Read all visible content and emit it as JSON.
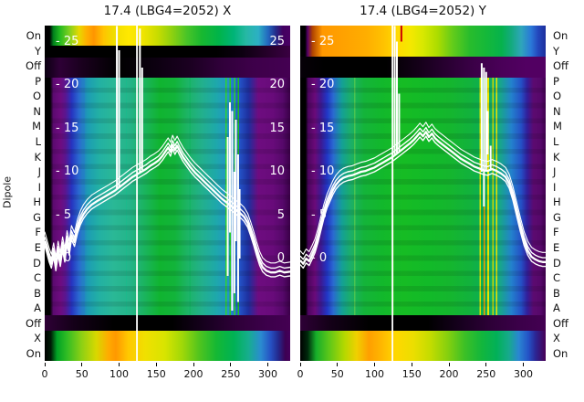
{
  "dipole_axis": {
    "label": "Dipole",
    "categories": [
      "On",
      "Y",
      "Off",
      "P",
      "O",
      "N",
      "M",
      "L",
      "K",
      "J",
      "I",
      "H",
      "G",
      "F",
      "E",
      "D",
      "C",
      "B",
      "A",
      "Off",
      "X",
      "On"
    ]
  },
  "panels": [
    {
      "title": "17.4 (LBG4=2052) X",
      "x_tick_labels": [
        "0",
        "50",
        "100",
        "150",
        "200",
        "250",
        "300"
      ],
      "overlay_left_tick_labels": [
        "- 25",
        "- 20",
        "- 15",
        "- 10",
        "- 5",
        "- 0"
      ],
      "overlay_right_tick_labels": [
        "25",
        "20",
        "15",
        "10",
        "5",
        "0"
      ]
    },
    {
      "title": "17.4 (LBG4=2052) Y",
      "x_tick_labels": [
        "0",
        "50",
        "100",
        "150",
        "200",
        "250",
        "300"
      ],
      "overlay_left_tick_labels": [
        "- 25",
        "- 20",
        "- 15",
        "- 10",
        "- 5",
        "- 0"
      ],
      "overlay_right_tick_labels": []
    }
  ],
  "chart_data": [
    {
      "type": "heatmap",
      "title": "17.4 (LBG4=2052) X",
      "ylabel": "Dipole",
      "row_categories": [
        "On",
        "Y",
        "Off",
        "P",
        "O",
        "N",
        "M",
        "L",
        "K",
        "J",
        "I",
        "H",
        "G",
        "F",
        "E",
        "D",
        "C",
        "B",
        "A",
        "Off",
        "X",
        "On"
      ],
      "x_range": [
        0,
        330
      ],
      "x_ticks": [
        0,
        50,
        100,
        150,
        200,
        250,
        300
      ],
      "overlay_y_ticks": [
        25,
        20,
        15,
        10,
        5,
        0
      ],
      "palette": [
        "#000000",
        "#5c0a70",
        "#2136c6",
        "#14a096",
        "#12b82c",
        "#e8e000",
        "#ff9800"
      ],
      "trace_color": "#ffffff",
      "full_vline_x": 124,
      "trace_points": [
        [
          0,
          2.0
        ],
        [
          3,
          1.1
        ],
        [
          6,
          0.1
        ],
        [
          9,
          -0.6
        ],
        [
          12,
          0.7
        ],
        [
          15,
          -0.9
        ],
        [
          18,
          0.9
        ],
        [
          21,
          -0.4
        ],
        [
          24,
          1.4
        ],
        [
          27,
          0.1
        ],
        [
          30,
          2.1
        ],
        [
          33,
          0.9
        ],
        [
          36,
          2.7
        ],
        [
          40,
          1.9
        ],
        [
          44,
          3.4
        ],
        [
          48,
          4.4
        ],
        [
          52,
          5.1
        ],
        [
          57,
          5.7
        ],
        [
          63,
          6.2
        ],
        [
          70,
          6.6
        ],
        [
          78,
          7.0
        ],
        [
          86,
          7.4
        ],
        [
          94,
          7.8
        ],
        [
          100,
          8.2
        ],
        [
          106,
          8.6
        ],
        [
          112,
          9.0
        ],
        [
          118,
          9.4
        ],
        [
          124,
          9.7
        ],
        [
          130,
          10.0
        ],
        [
          136,
          10.3
        ],
        [
          142,
          10.7
        ],
        [
          148,
          11.0
        ],
        [
          153,
          11.3
        ],
        [
          158,
          11.8
        ],
        [
          162,
          12.3
        ],
        [
          166,
          12.8
        ],
        [
          169,
          12.3
        ],
        [
          172,
          13.1
        ],
        [
          175,
          12.5
        ],
        [
          178,
          13.0
        ],
        [
          182,
          12.3
        ],
        [
          186,
          11.7
        ],
        [
          191,
          11.1
        ],
        [
          196,
          10.5
        ],
        [
          202,
          9.9
        ],
        [
          208,
          9.4
        ],
        [
          214,
          8.9
        ],
        [
          220,
          8.4
        ],
        [
          226,
          7.9
        ],
        [
          232,
          7.4
        ],
        [
          238,
          6.9
        ],
        [
          244,
          6.5
        ],
        [
          250,
          6.1
        ],
        [
          256,
          5.7
        ],
        [
          262,
          5.3
        ],
        [
          268,
          4.8
        ],
        [
          273,
          4.1
        ],
        [
          277,
          3.1
        ],
        [
          281,
          2.0
        ],
        [
          285,
          0.8
        ],
        [
          289,
          -0.3
        ],
        [
          293,
          -1.0
        ],
        [
          298,
          -1.4
        ],
        [
          304,
          -1.6
        ],
        [
          310,
          -1.6
        ],
        [
          316,
          -1.4
        ],
        [
          322,
          -1.6
        ],
        [
          330,
          -1.5
        ]
      ],
      "spikes": [
        [
          97,
          8,
          26.8
        ],
        [
          100,
          8.2,
          24
        ],
        [
          128,
          10,
          26.5
        ],
        [
          131,
          10.2,
          22
        ],
        [
          246,
          -2,
          14
        ],
        [
          249,
          3,
          18
        ],
        [
          252,
          -6,
          17
        ],
        [
          255,
          -4,
          10
        ],
        [
          257,
          2,
          16
        ],
        [
          260,
          -5,
          12
        ],
        [
          262,
          0,
          8
        ]
      ]
    },
    {
      "type": "heatmap",
      "title": "17.4 (LBG4=2052) Y",
      "ylabel": "Dipole",
      "row_categories": [
        "On",
        "Y",
        "Off",
        "P",
        "O",
        "N",
        "M",
        "L",
        "K",
        "J",
        "I",
        "H",
        "G",
        "F",
        "E",
        "D",
        "C",
        "B",
        "A",
        "Off",
        "X",
        "On"
      ],
      "x_range": [
        0,
        330
      ],
      "x_ticks": [
        0,
        50,
        100,
        150,
        200,
        250,
        300
      ],
      "overlay_y_ticks": [
        25,
        20,
        15,
        10,
        5,
        0
      ],
      "palette": [
        "#000000",
        "#4c0560",
        "#2136c6",
        "#14a096",
        "#16bc24",
        "#e8e400",
        "#ff9800"
      ],
      "trace_color": "#ffffff",
      "full_vline_x": 124,
      "red_marker": {
        "x": 136,
        "v_from": 25,
        "v_to": 28,
        "color": "#cc0000"
      },
      "trace_points": [
        [
          0,
          -0.2
        ],
        [
          4,
          -0.6
        ],
        [
          8,
          0.0
        ],
        [
          12,
          -0.3
        ],
        [
          16,
          0.4
        ],
        [
          20,
          1.2
        ],
        [
          24,
          2.4
        ],
        [
          28,
          3.8
        ],
        [
          32,
          5.2
        ],
        [
          36,
          6.3
        ],
        [
          40,
          7.1
        ],
        [
          44,
          7.9
        ],
        [
          48,
          8.5
        ],
        [
          53,
          9.0
        ],
        [
          58,
          9.3
        ],
        [
          64,
          9.5
        ],
        [
          70,
          9.6
        ],
        [
          76,
          9.8
        ],
        [
          82,
          10.0
        ],
        [
          88,
          10.1
        ],
        [
          94,
          10.3
        ],
        [
          100,
          10.5
        ],
        [
          106,
          10.8
        ],
        [
          112,
          11.1
        ],
        [
          118,
          11.4
        ],
        [
          124,
          11.7
        ],
        [
          130,
          12.1
        ],
        [
          136,
          12.5
        ],
        [
          142,
          12.9
        ],
        [
          148,
          13.3
        ],
        [
          153,
          13.7
        ],
        [
          157,
          14.1
        ],
        [
          161,
          14.5
        ],
        [
          165,
          14.1
        ],
        [
          169,
          14.6
        ],
        [
          173,
          14.0
        ],
        [
          177,
          14.4
        ],
        [
          181,
          13.9
        ],
        [
          186,
          13.5
        ],
        [
          192,
          13.1
        ],
        [
          198,
          12.7
        ],
        [
          204,
          12.3
        ],
        [
          210,
          11.9
        ],
        [
          216,
          11.5
        ],
        [
          222,
          11.2
        ],
        [
          228,
          10.9
        ],
        [
          234,
          10.6
        ],
        [
          240,
          10.4
        ],
        [
          246,
          10.2
        ],
        [
          252,
          10.1
        ],
        [
          258,
          10.3
        ],
        [
          264,
          10.1
        ],
        [
          270,
          9.8
        ],
        [
          276,
          9.4
        ],
        [
          281,
          8.6
        ],
        [
          286,
          7.2
        ],
        [
          291,
          5.4
        ],
        [
          296,
          3.6
        ],
        [
          301,
          2.0
        ],
        [
          306,
          0.9
        ],
        [
          311,
          0.2
        ],
        [
          316,
          -0.1
        ],
        [
          321,
          -0.3
        ],
        [
          326,
          -0.4
        ],
        [
          330,
          -0.4
        ]
      ],
      "spikes": [
        [
          127,
          12,
          26.8
        ],
        [
          130,
          12.2,
          25
        ],
        [
          133,
          12.4,
          19
        ],
        [
          244,
          10,
          22.5
        ],
        [
          247,
          6,
          22
        ],
        [
          250,
          10,
          21.5
        ],
        [
          252,
          12,
          17
        ],
        [
          256,
          10.3,
          13
        ]
      ]
    }
  ]
}
